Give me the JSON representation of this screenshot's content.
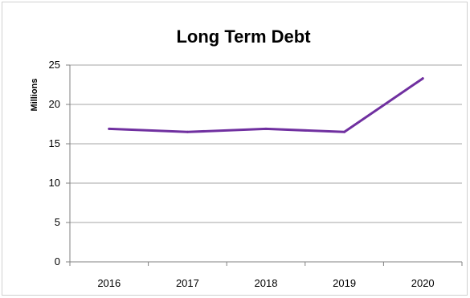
{
  "chart_data": {
    "type": "line",
    "title": "Long Term Debt",
    "xlabel": "",
    "ylabel": "Millions",
    "categories": [
      "2016",
      "2017",
      "2018",
      "2019",
      "2020"
    ],
    "series": [
      {
        "values": [
          16.9,
          16.5,
          16.9,
          16.5,
          23.3
        ],
        "color": "#7030a0"
      }
    ],
    "ylim": [
      0,
      25
    ],
    "yticks": [
      0,
      5,
      10,
      15,
      20,
      25
    ],
    "grid": true,
    "legend": "none"
  }
}
